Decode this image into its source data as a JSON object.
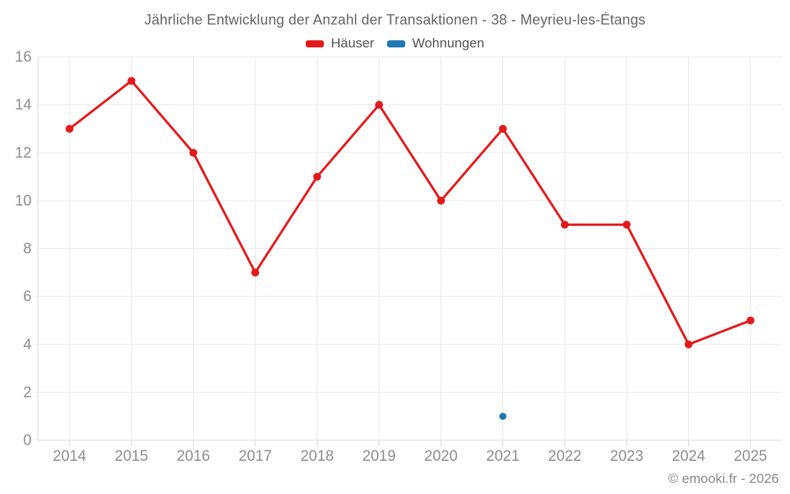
{
  "header": {
    "title": "Jährliche Entwicklung der Anzahl der Transaktionen - 38 - Meyrieu-les-Étangs"
  },
  "legend": {
    "items": [
      {
        "label": "Häuser",
        "color": "#e31a1c"
      },
      {
        "label": "Wohnungen",
        "color": "#1f78b4"
      }
    ]
  },
  "footer": {
    "copyright": "© emooki.fr - 2026"
  },
  "chart_data": {
    "type": "line",
    "title": "Jährliche Entwicklung der Anzahl der Transaktionen - 38 - Meyrieu-les-Étangs",
    "x": [
      2014,
      2015,
      2016,
      2017,
      2018,
      2019,
      2020,
      2021,
      2022,
      2023,
      2024,
      2025
    ],
    "series": [
      {
        "name": "Häuser",
        "color": "#e31a1c",
        "values": [
          13,
          15,
          12,
          7,
          11,
          14,
          10,
          13,
          9,
          9,
          4,
          5
        ]
      },
      {
        "name": "Wohnungen",
        "color": "#1f78b4",
        "values": [
          null,
          null,
          null,
          null,
          null,
          null,
          null,
          1,
          null,
          null,
          null,
          null
        ]
      }
    ],
    "xlabel": "",
    "ylabel": "",
    "ylim": [
      0,
      16
    ],
    "ytick_step": 2,
    "grid": true,
    "legend_position": "top"
  }
}
